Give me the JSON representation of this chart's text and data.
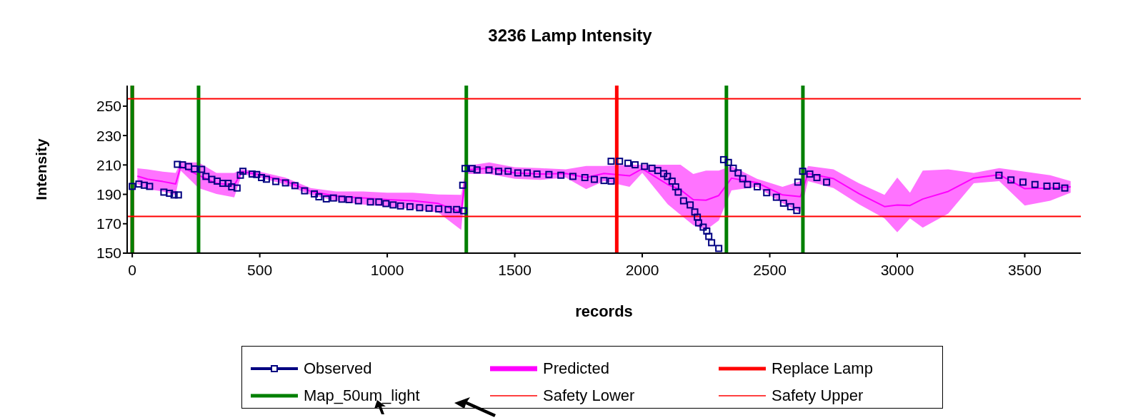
{
  "chart_data": {
    "type": "scatter",
    "title": "3236 Lamp Intensity",
    "xlabel": "records",
    "ylabel": "Intensity",
    "xlim": [
      -20,
      3720
    ],
    "xticks": [
      0,
      500,
      1000,
      1500,
      2000,
      2500,
      3000,
      3500
    ],
    "ylim": [
      150,
      264
    ],
    "yticks": [
      150,
      170,
      190,
      210,
      230,
      250
    ],
    "grid": false,
    "legend": "bottom",
    "series": [
      {
        "name": "Predicted",
        "type": "line",
        "color": "#ff00ff",
        "x": [
          20,
          60,
          120,
          170,
          190,
          260,
          330,
          400,
          430,
          500,
          600,
          700,
          800,
          900,
          1000,
          1100,
          1200,
          1290,
          1310,
          1400,
          1500,
          1600,
          1700,
          1780,
          1850,
          1950,
          2000,
          2100,
          2150,
          2200,
          2250,
          2300,
          2350,
          2450,
          2550,
          2620,
          2650,
          2750,
          2850,
          2950,
          3000,
          3050,
          3100,
          3200,
          3300,
          3400,
          3500,
          3600,
          3680
        ],
        "lower": [
          197,
          193.5,
          192,
          189.6,
          206.2,
          194.3,
          190.3,
          188,
          203.8,
          201.4,
          196.7,
          189.6,
          185.6,
          183.2,
          181.6,
          180.1,
          177.7,
          165.8,
          203.8,
          203.8,
          200.6,
          199.8,
          201.4,
          193.5,
          199,
          195.1,
          204.6,
          183.2,
          176.1,
          169,
          165.8,
          172.2,
          192.7,
          195.1,
          184,
          177.7,
          199,
          194.3,
          183.2,
          173.7,
          164.2,
          173.7,
          167.4,
          176.9,
          197.5,
          199,
          182.4,
          185.6,
          191.1
        ],
        "upper": [
          207.7,
          207,
          205.4,
          204.6,
          211.7,
          211.7,
          204.6,
          204.6,
          207,
          205.4,
          201.4,
          194.3,
          192,
          192,
          191.1,
          191.1,
          189.9,
          189.6,
          209.3,
          211.7,
          208.5,
          207.8,
          207,
          209.3,
          209.3,
          210.1,
          210.1,
          210.1,
          210.1,
          203.8,
          206.2,
          206.2,
          209.3,
          200.6,
          195.1,
          199,
          209.3,
          207,
          197.5,
          189.6,
          201.4,
          191.1,
          206.2,
          207,
          204.6,
          207.8,
          205.4,
          203,
          199
        ],
        "values": [
          202.4,
          200.3,
          198.7,
          197.1,
          209,
          203,
          197.5,
          196.3,
          205.4,
          203.4,
          199.1,
          192,
          188.8,
          187.6,
          186.4,
          185.6,
          183.8,
          177.7,
          206.6,
          207.8,
          204.6,
          203.8,
          204.2,
          201.4,
          204.2,
          202.6,
          207.4,
          196.7,
          193.1,
          186.4,
          186,
          189.2,
          201,
          197.9,
          189.6,
          188.4,
          204.2,
          200.7,
          190.4,
          181.7,
          182.8,
          182.4,
          186.8,
          192,
          201.1,
          203.4,
          193.9,
          194.3,
          195.1
        ]
      },
      {
        "name": "Observed",
        "marker": "square",
        "color": "#000080",
        "x": [
          0,
          26,
          47,
          68,
          124,
          146,
          164,
          181,
          177,
          197,
          221,
          244,
          272,
          289,
          312,
          333,
          355,
          376,
          390,
          411,
          424,
          434,
          470,
          488,
          507,
          526,
          563,
          601,
          638,
          676,
          714,
          732,
          761,
          789,
          822,
          850,
          887,
          934,
          967,
          995,
          1023,
          1052,
          1089,
          1127,
          1164,
          1202,
          1239,
          1272,
          1300,
          1296,
          1305,
          1333,
          1352,
          1399,
          1437,
          1474,
          1512,
          1549,
          1587,
          1634,
          1681,
          1728,
          1775,
          1812,
          1850,
          1878,
          1878,
          1911,
          1944,
          1972,
          2009,
          2038,
          2061,
          2084,
          2099,
          2117,
          2131,
          2141,
          2162,
          2188,
          2206,
          2216,
          2221,
          2239,
          2253,
          2261,
          2272,
          2300,
          2319,
          2338,
          2357,
          2376,
          2394,
          2413,
          2451,
          2488,
          2526,
          2554,
          2582,
          2606,
          2610,
          2629,
          2657,
          2685,
          2723,
          3399,
          3446,
          3493,
          3540,
          3587,
          3624,
          3657
        ],
        "values": [
          195.4,
          197,
          196.2,
          195.4,
          191.5,
          190.7,
          189.6,
          189.6,
          210.4,
          210.1,
          208.9,
          207.3,
          207,
          202.2,
          200.2,
          199,
          197.5,
          197.5,
          195.1,
          194.3,
          203,
          205.7,
          203.8,
          203.5,
          201.4,
          200.3,
          198.7,
          197.8,
          195.9,
          192.4,
          190.3,
          188.3,
          186.9,
          187.5,
          186.7,
          186.4,
          185.6,
          184.8,
          184.8,
          183.7,
          182.8,
          182.1,
          181.6,
          180.9,
          180.5,
          180.1,
          179.7,
          179.7,
          178.8,
          196.2,
          207.6,
          207.6,
          206.6,
          206.6,
          205.7,
          205.7,
          204.6,
          204.6,
          203.8,
          203.5,
          203,
          202.2,
          201.4,
          200.2,
          199.4,
          199,
          212.5,
          212.5,
          211.2,
          210.1,
          209,
          207.8,
          206.2,
          204.1,
          202.2,
          199,
          195.1,
          191.5,
          185.6,
          182.8,
          178,
          174.5,
          170.6,
          167.7,
          165,
          161.4,
          157.1,
          153.2,
          213.6,
          211.7,
          207.8,
          204.6,
          200.6,
          196.7,
          195.1,
          191.1,
          188,
          184,
          181.6,
          179,
          198.3,
          205.7,
          203.8,
          201.4,
          198.3,
          203,
          199.8,
          198.3,
          196.7,
          195.6,
          195.6,
          194.3
        ]
      }
    ],
    "ref_lines": [
      {
        "axis": "x",
        "value": 0,
        "label": "Replace Lamp",
        "color": "#ff0000"
      },
      {
        "axis": "x",
        "value": 1900,
        "color": "#ff0000"
      },
      {
        "axis": "x",
        "value": 0,
        "label": "Map_50um_light",
        "color": "#008000"
      },
      {
        "axis": "x",
        "value": 260,
        "color": "#008000"
      },
      {
        "axis": "x",
        "value": 1310,
        "color": "#008000"
      },
      {
        "axis": "x",
        "value": 2330,
        "color": "#008000"
      },
      {
        "axis": "x",
        "value": 2630,
        "color": "#008000"
      },
      {
        "axis": "y",
        "value": 175,
        "label": "Safety Lower",
        "color": "#ff0000"
      },
      {
        "axis": "y",
        "value": 255,
        "label": "Safety Upper",
        "color": "#ff0000"
      }
    ]
  }
}
